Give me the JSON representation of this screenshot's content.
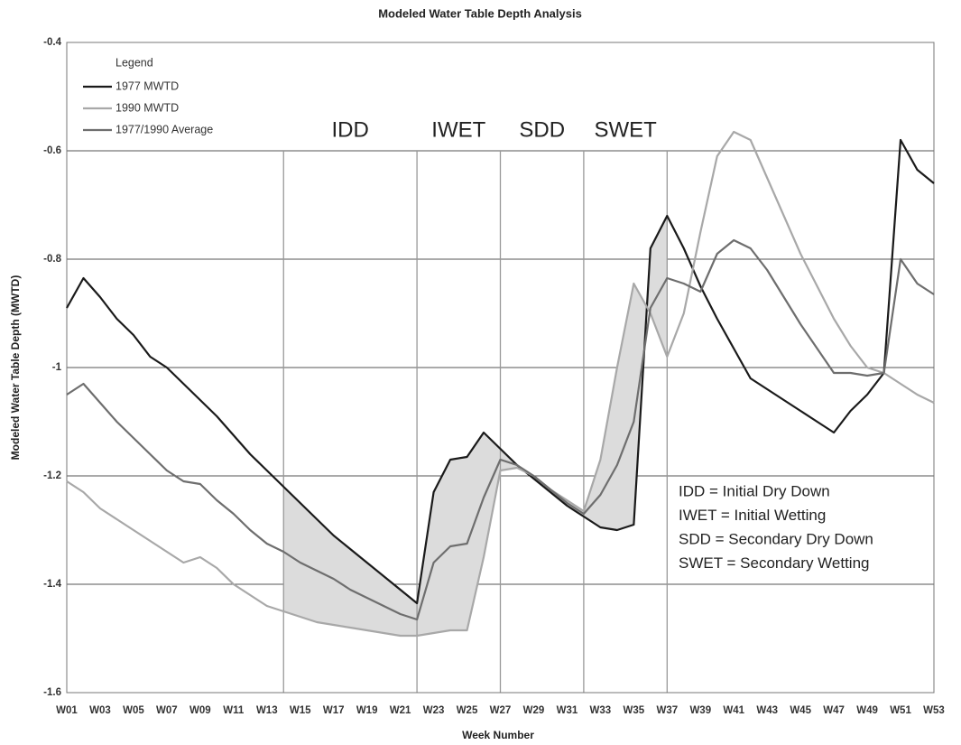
{
  "chart_data": {
    "type": "line",
    "title": "Modeled Water Table Depth Analysis",
    "x_label": "Week Number",
    "y_label": "Modeled Water Table Depth (MWTD)",
    "categories": [
      "W01",
      null,
      "W03",
      null,
      "W05",
      null,
      "W07",
      null,
      "W09",
      null,
      "W11",
      null,
      "W13",
      null,
      "W15",
      null,
      "W17",
      null,
      "W19",
      null,
      "W21",
      null,
      "W23",
      null,
      "W25",
      null,
      "W27",
      null,
      "W29",
      null,
      "W31",
      null,
      "W33",
      null,
      "W35",
      null,
      "W37",
      null,
      "W39",
      null,
      "W41",
      null,
      "W43",
      null,
      "W45",
      null,
      "W47",
      null,
      "W49",
      null,
      "W51",
      null,
      "W53"
    ],
    "series": [
      {
        "name": "1977 MWTD",
        "color": "#1a1a1a",
        "values": [
          -0.89,
          -0.835,
          -0.87,
          -0.91,
          -0.94,
          -0.98,
          -1.0,
          -1.03,
          -1.06,
          -1.09,
          -1.125,
          -1.16,
          -1.19,
          -1.22,
          -1.25,
          -1.28,
          -1.31,
          -1.335,
          -1.36,
          -1.385,
          -1.41,
          -1.435,
          -1.23,
          -1.17,
          -1.165,
          -1.12,
          -1.15,
          -1.18,
          -1.205,
          -1.23,
          -1.255,
          -1.275,
          -1.295,
          -1.3,
          -1.29,
          -0.78,
          -0.72,
          -0.78,
          -0.85,
          -0.91,
          -0.965,
          -1.02,
          -1.04,
          -1.06,
          -1.08,
          -1.1,
          -1.12,
          -1.08,
          -1.05,
          -1.01,
          -0.58,
          -0.635,
          -0.66
        ]
      },
      {
        "name": "1990 MWTD",
        "color": "#a8a8a8",
        "values": [
          -1.21,
          -1.23,
          -1.26,
          -1.28,
          -1.3,
          -1.32,
          -1.34,
          -1.36,
          -1.35,
          -1.37,
          -1.4,
          -1.42,
          -1.44,
          -1.45,
          -1.46,
          -1.47,
          -1.475,
          -1.48,
          -1.485,
          -1.49,
          -1.495,
          -1.495,
          -1.49,
          -1.485,
          -1.485,
          -1.35,
          -1.19,
          -1.185,
          -1.2,
          -1.225,
          -1.245,
          -1.265,
          -1.17,
          -1.0,
          -0.845,
          -0.9,
          -0.98,
          -0.9,
          -0.75,
          -0.61,
          -0.565,
          -0.58,
          -0.65,
          -0.72,
          -0.79,
          -0.85,
          -0.91,
          -0.96,
          -1.0,
          -1.01,
          -1.03,
          -1.05,
          -1.065
        ]
      },
      {
        "name": "1977/1990 Average",
        "color": "#6e6e6e",
        "values": [
          -1.05,
          -1.03,
          -1.065,
          -1.1,
          -1.13,
          -1.16,
          -1.19,
          -1.21,
          -1.215,
          -1.245,
          -1.27,
          -1.3,
          -1.325,
          -1.34,
          -1.36,
          -1.375,
          -1.39,
          -1.41,
          -1.425,
          -1.44,
          -1.455,
          -1.465,
          -1.36,
          -1.33,
          -1.325,
          -1.24,
          -1.17,
          -1.18,
          -1.2,
          -1.225,
          -1.25,
          -1.27,
          -1.235,
          -1.18,
          -1.1,
          -0.89,
          -0.835,
          -0.845,
          -0.86,
          -0.79,
          -0.765,
          -0.78,
          -0.82,
          -0.87,
          -0.92,
          -0.965,
          -1.01,
          -1.01,
          -1.015,
          -1.01,
          -0.8,
          -0.845,
          -0.865
        ]
      }
    ],
    "ylim": [
      -1.6,
      -0.4
    ],
    "yticks": [
      -1.6,
      -1.4,
      -1.2,
      -1,
      -0.8,
      -0.6,
      -0.4
    ],
    "grid": true,
    "legend_title": "Legend",
    "legend": "top-left",
    "phases": [
      {
        "label": "IDD",
        "from": 14,
        "to": 22
      },
      {
        "label": "IWET",
        "from": 22,
        "to": 27
      },
      {
        "label": "SDD",
        "from": 27,
        "to": 32
      },
      {
        "label": "SWET",
        "from": 32,
        "to": 37
      }
    ],
    "shade_color": "#dcdcdc",
    "annotations": [
      "IDD = Initial Dry Down",
      "IWET = Initial Wetting",
      "SDD = Secondary Dry Down",
      "SWET = Secondary Wetting"
    ]
  }
}
